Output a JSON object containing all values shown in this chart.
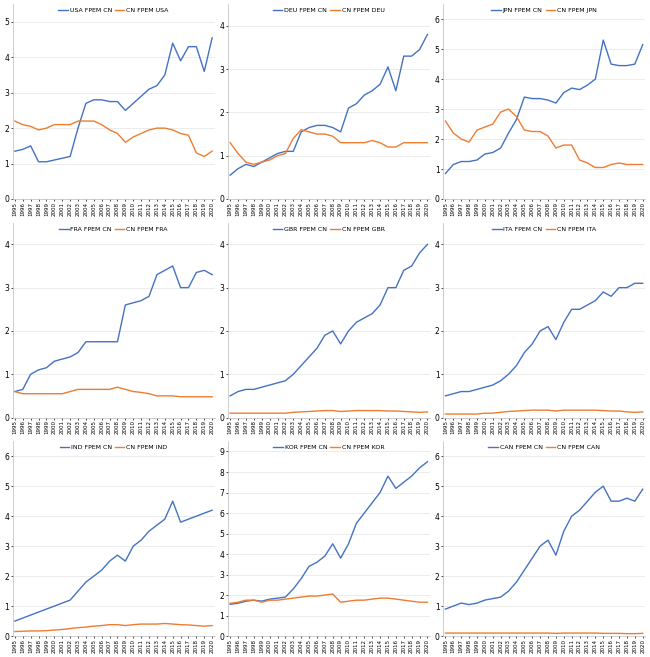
{
  "years": [
    1995,
    1996,
    1997,
    1998,
    1999,
    2000,
    2001,
    2002,
    2003,
    2004,
    2005,
    2006,
    2007,
    2008,
    2009,
    2010,
    2011,
    2012,
    2013,
    2014,
    2015,
    2016,
    2017,
    2018,
    2019,
    2020
  ],
  "panels": [
    {
      "title_blue": "USA FPEM CN",
      "title_orange": "CN FPEM USA",
      "blue": [
        1.35,
        1.4,
        1.5,
        1.05,
        1.05,
        1.1,
        1.15,
        1.2,
        2.0,
        2.7,
        2.8,
        2.8,
        2.75,
        2.75,
        2.5,
        2.7,
        2.9,
        3.1,
        3.2,
        3.5,
        4.4,
        3.9,
        4.3,
        4.3,
        3.6,
        4.55
      ],
      "orange": [
        2.2,
        2.1,
        2.05,
        1.95,
        2.0,
        2.1,
        2.1,
        2.1,
        2.2,
        2.2,
        2.2,
        2.1,
        1.95,
        1.85,
        1.6,
        1.75,
        1.85,
        1.95,
        2.0,
        2.0,
        1.95,
        1.85,
        1.8,
        1.3,
        1.2,
        1.35
      ],
      "ylim": [
        0,
        5.5
      ],
      "yticks": [
        0,
        1,
        2,
        3,
        4,
        5
      ]
    },
    {
      "title_blue": "DEU FPEM CN",
      "title_orange": "CN FPEM DEU",
      "blue": [
        0.55,
        0.7,
        0.8,
        0.75,
        0.85,
        0.95,
        1.05,
        1.1,
        1.1,
        1.55,
        1.65,
        1.7,
        1.7,
        1.65,
        1.55,
        2.1,
        2.2,
        2.4,
        2.5,
        2.65,
        3.05,
        2.5,
        3.3,
        3.3,
        3.45,
        3.8
      ],
      "orange": [
        1.3,
        1.05,
        0.85,
        0.8,
        0.85,
        0.9,
        1.0,
        1.05,
        1.4,
        1.6,
        1.55,
        1.5,
        1.5,
        1.45,
        1.3,
        1.3,
        1.3,
        1.3,
        1.35,
        1.3,
        1.2,
        1.2,
        1.3,
        1.3,
        1.3,
        1.3
      ],
      "ylim": [
        0,
        4.5
      ],
      "yticks": [
        0,
        1,
        2,
        3,
        4
      ]
    },
    {
      "title_blue": "JPN FPEM CN",
      "title_orange": "CN FPEM JPN",
      "blue": [
        0.85,
        1.15,
        1.25,
        1.25,
        1.3,
        1.5,
        1.55,
        1.7,
        2.2,
        2.65,
        3.4,
        3.35,
        3.35,
        3.3,
        3.2,
        3.55,
        3.7,
        3.65,
        3.8,
        4.0,
        5.3,
        4.5,
        4.45,
        4.45,
        4.5,
        5.15
      ],
      "orange": [
        2.6,
        2.2,
        2.0,
        1.9,
        2.3,
        2.4,
        2.5,
        2.9,
        3.0,
        2.75,
        2.3,
        2.25,
        2.25,
        2.1,
        1.7,
        1.8,
        1.8,
        1.3,
        1.2,
        1.05,
        1.05,
        1.15,
        1.2,
        1.15,
        1.15,
        1.15
      ],
      "ylim": [
        0,
        6.5
      ],
      "yticks": [
        0,
        1,
        2,
        3,
        4,
        5,
        6
      ]
    },
    {
      "title_blue": "FRA FPEM CN",
      "title_orange": "CN FPEM FRA",
      "blue": [
        0.6,
        0.65,
        1.0,
        1.1,
        1.15,
        1.3,
        1.35,
        1.4,
        1.5,
        1.75,
        1.75,
        1.75,
        1.75,
        1.75,
        2.6,
        2.65,
        2.7,
        2.8,
        3.3,
        3.4,
        3.5,
        3.0,
        3.0,
        3.35,
        3.4,
        3.3
      ],
      "orange": [
        0.6,
        0.55,
        0.55,
        0.55,
        0.55,
        0.55,
        0.55,
        0.6,
        0.65,
        0.65,
        0.65,
        0.65,
        0.65,
        0.7,
        0.65,
        0.6,
        0.58,
        0.55,
        0.5,
        0.5,
        0.5,
        0.48,
        0.48,
        0.48,
        0.48,
        0.48
      ],
      "ylim": [
        0,
        4.5
      ],
      "yticks": [
        0,
        1,
        2,
        3,
        4
      ]
    },
    {
      "title_blue": "GBR FPEM CN",
      "title_orange": "CN FPEM GBR",
      "blue": [
        0.5,
        0.6,
        0.65,
        0.65,
        0.7,
        0.75,
        0.8,
        0.85,
        1.0,
        1.2,
        1.4,
        1.6,
        1.9,
        2.0,
        1.7,
        2.0,
        2.2,
        2.3,
        2.4,
        2.6,
        3.0,
        3.0,
        3.4,
        3.5,
        3.8,
        4.0
      ],
      "orange": [
        0.1,
        0.1,
        0.1,
        0.1,
        0.1,
        0.1,
        0.1,
        0.1,
        0.12,
        0.13,
        0.14,
        0.15,
        0.16,
        0.16,
        0.14,
        0.15,
        0.16,
        0.16,
        0.16,
        0.16,
        0.15,
        0.15,
        0.14,
        0.13,
        0.12,
        0.13
      ],
      "ylim": [
        0,
        4.5
      ],
      "yticks": [
        0,
        1,
        2,
        3,
        4
      ]
    },
    {
      "title_blue": "ITA FPEM CN",
      "title_orange": "CN FPEM ITA",
      "blue": [
        0.5,
        0.55,
        0.6,
        0.6,
        0.65,
        0.7,
        0.75,
        0.85,
        1.0,
        1.2,
        1.5,
        1.7,
        2.0,
        2.1,
        1.8,
        2.2,
        2.5,
        2.5,
        2.6,
        2.7,
        2.9,
        2.8,
        3.0,
        3.0,
        3.1,
        3.1
      ],
      "orange": [
        0.08,
        0.08,
        0.08,
        0.08,
        0.08,
        0.1,
        0.1,
        0.12,
        0.14,
        0.15,
        0.16,
        0.17,
        0.17,
        0.17,
        0.15,
        0.17,
        0.17,
        0.17,
        0.17,
        0.17,
        0.16,
        0.15,
        0.15,
        0.13,
        0.12,
        0.13
      ],
      "ylim": [
        0,
        4.5
      ],
      "yticks": [
        0,
        1,
        2,
        3,
        4
      ]
    },
    {
      "title_blue": "IND FPEM CN",
      "title_orange": "CN FPEM IND",
      "blue": [
        0.5,
        0.6,
        0.7,
        0.8,
        0.9,
        1.0,
        1.1,
        1.2,
        1.5,
        1.8,
        2.0,
        2.2,
        2.5,
        2.7,
        2.5,
        3.0,
        3.2,
        3.5,
        3.7,
        3.9,
        4.5,
        3.8,
        3.9,
        4.0,
        4.1,
        4.2
      ],
      "orange": [
        0.15,
        0.16,
        0.17,
        0.17,
        0.18,
        0.2,
        0.22,
        0.25,
        0.28,
        0.3,
        0.33,
        0.35,
        0.38,
        0.38,
        0.35,
        0.38,
        0.4,
        0.4,
        0.4,
        0.42,
        0.4,
        0.38,
        0.37,
        0.35,
        0.33,
        0.35
      ],
      "ylim": [
        0,
        6.5
      ],
      "yticks": [
        0,
        1,
        2,
        3,
        4,
        5,
        6
      ]
    },
    {
      "title_blue": "KOR FPEM CN",
      "title_orange": "CN FPEM KOR",
      "blue": [
        1.55,
        1.6,
        1.7,
        1.75,
        1.7,
        1.8,
        1.85,
        1.9,
        2.3,
        2.8,
        3.4,
        3.6,
        3.9,
        4.5,
        3.8,
        4.5,
        5.5,
        6.0,
        6.5,
        7.0,
        7.8,
        7.2,
        7.5,
        7.8,
        8.2,
        8.5
      ],
      "orange": [
        1.6,
        1.65,
        1.75,
        1.75,
        1.65,
        1.75,
        1.75,
        1.8,
        1.85,
        1.9,
        1.95,
        1.95,
        2.0,
        2.05,
        1.65,
        1.7,
        1.75,
        1.75,
        1.8,
        1.85,
        1.85,
        1.8,
        1.75,
        1.7,
        1.65,
        1.65
      ],
      "ylim": [
        0,
        9.5
      ],
      "yticks": [
        0,
        1,
        2,
        3,
        4,
        5,
        6,
        7,
        8,
        9
      ]
    },
    {
      "title_blue": "CAN FPEM CN",
      "title_orange": "CN FPEM CAN",
      "blue": [
        0.9,
        1.0,
        1.1,
        1.05,
        1.1,
        1.2,
        1.25,
        1.3,
        1.5,
        1.8,
        2.2,
        2.6,
        3.0,
        3.2,
        2.7,
        3.5,
        4.0,
        4.2,
        4.5,
        4.8,
        5.0,
        4.5,
        4.5,
        4.6,
        4.5,
        4.9
      ],
      "orange": [
        0.1,
        0.1,
        0.1,
        0.1,
        0.1,
        0.1,
        0.1,
        0.1,
        0.1,
        0.1,
        0.1,
        0.1,
        0.1,
        0.1,
        0.09,
        0.1,
        0.1,
        0.1,
        0.1,
        0.1,
        0.09,
        0.09,
        0.09,
        0.08,
        0.08,
        0.09
      ],
      "ylim": [
        0,
        6.5
      ],
      "yticks": [
        0,
        1,
        2,
        3,
        4,
        5,
        6
      ]
    }
  ],
  "blue_color": "#4472C4",
  "orange_color": "#ED7D31",
  "background_color": "#FFFFFF"
}
